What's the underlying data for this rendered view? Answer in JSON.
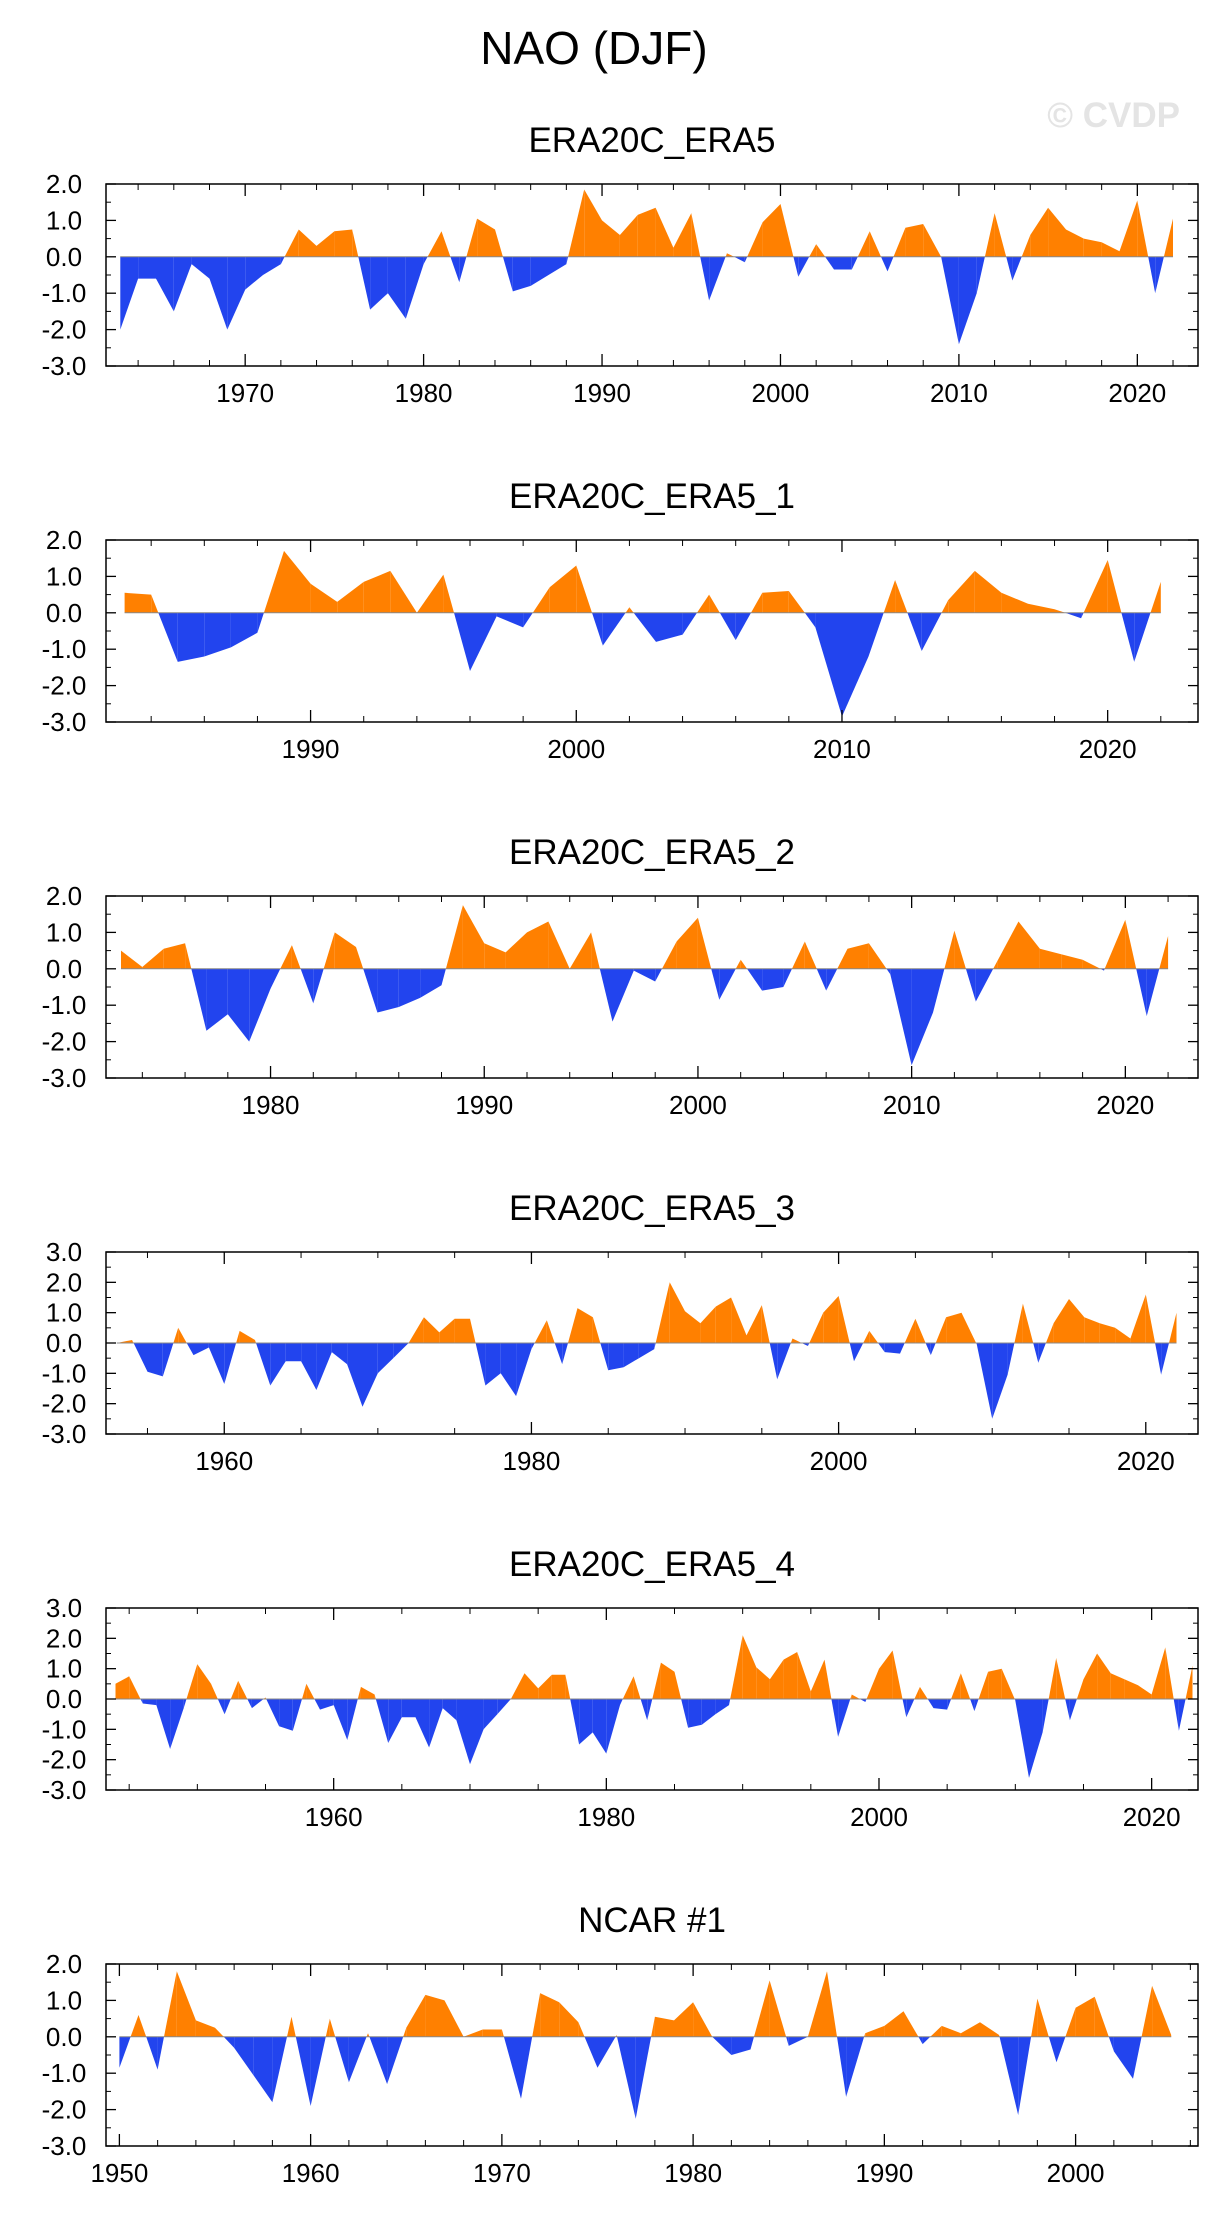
{
  "figure": {
    "title": "NAO (DJF)",
    "watermark": "© CVDP"
  },
  "colors": {
    "positive": "#ff8000",
    "negative": "#2244ee",
    "frame": "#000000",
    "zero_line": "#888888"
  },
  "chart_data": [
    {
      "type": "area",
      "title": "ERA20C_ERA5",
      "xlim": [
        1962.2,
        2023.4
      ],
      "ylim": [
        -3.0,
        2.0
      ],
      "yticks": [
        "2.0",
        "1.0",
        "0.0",
        "-1.0",
        "-2.0",
        "-3.0"
      ],
      "xticks": [
        1970,
        1980,
        1990,
        2000,
        2010,
        2020
      ],
      "x_start": 1963,
      "values": [
        -2.0,
        -0.6,
        -0.6,
        -1.5,
        -0.2,
        -0.6,
        -2.0,
        -0.9,
        -0.5,
        -0.2,
        0.75,
        0.3,
        0.7,
        0.75,
        -1.45,
        -1.0,
        -1.7,
        -0.2,
        0.7,
        -0.7,
        1.05,
        0.75,
        -0.95,
        -0.8,
        -0.5,
        -0.2,
        1.85,
        1.0,
        0.6,
        1.15,
        1.35,
        0.25,
        1.2,
        -1.2,
        0.1,
        -0.15,
        0.95,
        1.45,
        -0.55,
        0.35,
        -0.35,
        -0.35,
        0.7,
        -0.4,
        0.8,
        0.9,
        0.0,
        -2.4,
        -1.0,
        1.2,
        -0.65,
        0.6,
        1.35,
        0.75,
        0.5,
        0.4,
        0.15,
        1.55,
        -1.0,
        1.05
      ]
    },
    {
      "type": "area",
      "title": "ERA20C_ERA5_1",
      "xlim": [
        1982.3,
        2023.4
      ],
      "ylim": [
        -3.0,
        2.0
      ],
      "yticks": [
        "2.0",
        "1.0",
        "0.0",
        "-1.0",
        "-2.0",
        "-3.0"
      ],
      "xticks": [
        1990,
        2000,
        2010,
        2020
      ],
      "x_start": 1983,
      "values": [
        0.55,
        0.5,
        -1.35,
        -1.2,
        -0.95,
        -0.55,
        1.7,
        0.8,
        0.3,
        0.85,
        1.15,
        0.0,
        1.05,
        -1.6,
        -0.1,
        -0.4,
        0.7,
        1.3,
        -0.9,
        0.15,
        -0.8,
        -0.6,
        0.5,
        -0.75,
        0.55,
        0.6,
        -0.4,
        -2.85,
        -1.2,
        0.9,
        -1.05,
        0.35,
        1.15,
        0.55,
        0.25,
        0.1,
        -0.15,
        1.45,
        -1.35,
        0.85
      ]
    },
    {
      "type": "area",
      "title": "ERA20C_ERA5_2",
      "xlim": [
        1972.3,
        2023.4
      ],
      "ylim": [
        -3.0,
        2.0
      ],
      "yticks": [
        "2.0",
        "1.0",
        "0.0",
        "-1.0",
        "-2.0",
        "-3.0"
      ],
      "xticks": [
        1980,
        1990,
        2000,
        2010,
        2020
      ],
      "x_start": 1973,
      "values": [
        0.5,
        0.05,
        0.55,
        0.7,
        -1.7,
        -1.25,
        -2.0,
        -0.55,
        0.65,
        -0.95,
        1.0,
        0.6,
        -1.2,
        -1.05,
        -0.8,
        -0.45,
        1.75,
        0.7,
        0.45,
        1.0,
        1.3,
        0.0,
        1.0,
        -1.45,
        -0.05,
        -0.35,
        0.75,
        1.4,
        -0.85,
        0.25,
        -0.6,
        -0.5,
        0.75,
        -0.6,
        0.55,
        0.7,
        -0.15,
        -2.65,
        -1.2,
        1.05,
        -0.9,
        0.2,
        1.3,
        0.55,
        0.4,
        0.25,
        -0.05,
        1.35,
        -1.3,
        0.9
      ]
    },
    {
      "type": "area",
      "title": "ERA20C_ERA5_3",
      "xlim": [
        1952.3,
        2023.4
      ],
      "ylim": [
        -3.0,
        3.0
      ],
      "yticks": [
        "3.0",
        "2.0",
        "1.0",
        "0.0",
        "-1.0",
        "-2.0",
        "-3.0"
      ],
      "xticks": [
        1960,
        1980,
        2000,
        2020
      ],
      "x_start": 1953,
      "values": [
        0.0,
        0.1,
        -0.95,
        -1.1,
        0.5,
        -0.4,
        -0.15,
        -1.35,
        0.4,
        0.1,
        -1.4,
        -0.6,
        -0.6,
        -1.55,
        -0.3,
        -0.7,
        -2.1,
        -1.0,
        -0.5,
        0.0,
        0.85,
        0.35,
        0.8,
        0.8,
        -1.4,
        -1.0,
        -1.75,
        -0.2,
        0.75,
        -0.7,
        1.15,
        0.85,
        -0.9,
        -0.8,
        -0.5,
        -0.2,
        2.0,
        1.05,
        0.65,
        1.2,
        1.5,
        0.25,
        1.25,
        -1.2,
        0.15,
        -0.1,
        1.0,
        1.55,
        -0.6,
        0.4,
        -0.3,
        -0.35,
        0.8,
        -0.4,
        0.85,
        1.0,
        -0.05,
        -2.5,
        -1.05,
        1.3,
        -0.65,
        0.65,
        1.45,
        0.85,
        0.65,
        0.5,
        0.15,
        1.6,
        -1.05,
        1.0
      ]
    },
    {
      "type": "area",
      "title": "ERA20C_ERA5_4",
      "xlim": [
        1943.3,
        2023.4
      ],
      "ylim": [
        -3.0,
        3.0
      ],
      "yticks": [
        "3.0",
        "2.0",
        "1.0",
        "0.0",
        "-1.0",
        "-2.0",
        "-3.0"
      ],
      "xticks": [
        1960,
        1980,
        2000,
        2020
      ],
      "x_start": 1944,
      "values": [
        0.5,
        0.75,
        -0.15,
        -0.2,
        -1.65,
        -0.3,
        1.15,
        0.5,
        -0.5,
        0.6,
        -0.3,
        0.05,
        -0.9,
        -1.05,
        0.5,
        -0.35,
        -0.2,
        -1.35,
        0.4,
        0.15,
        -1.45,
        -0.6,
        -0.6,
        -1.6,
        -0.3,
        -0.7,
        -2.15,
        -1.0,
        -0.5,
        0.0,
        0.85,
        0.35,
        0.8,
        0.8,
        -1.5,
        -1.1,
        -1.8,
        -0.2,
        0.75,
        -0.7,
        1.2,
        0.9,
        -0.95,
        -0.85,
        -0.5,
        -0.2,
        2.1,
        1.05,
        0.65,
        1.3,
        1.55,
        0.25,
        1.3,
        -1.25,
        0.15,
        -0.1,
        1.0,
        1.6,
        -0.6,
        0.4,
        -0.3,
        -0.35,
        0.85,
        -0.4,
        0.9,
        1.0,
        -0.05,
        -2.6,
        -1.1,
        1.35,
        -0.7,
        0.65,
        1.5,
        0.85,
        0.65,
        0.45,
        0.15,
        1.7,
        -1.05,
        1.1
      ]
    },
    {
      "type": "area",
      "title": "NCAR #1",
      "xlim": [
        1949.3,
        2006.4
      ],
      "ylim": [
        -3.0,
        2.0
      ],
      "yticks": [
        "2.0",
        "1.0",
        "0.0",
        "-1.0",
        "-2.0",
        "-3.0"
      ],
      "xticks": [
        1950,
        1960,
        1970,
        1980,
        1990,
        2000
      ],
      "x_start": 1950,
      "values": [
        -0.85,
        0.6,
        -0.9,
        1.8,
        0.45,
        0.25,
        -0.3,
        -1.05,
        -1.8,
        0.55,
        -1.9,
        0.5,
        -1.25,
        0.1,
        -1.3,
        0.25,
        1.15,
        1.0,
        0.0,
        0.2,
        0.2,
        -1.7,
        1.2,
        0.95,
        0.4,
        -0.85,
        0.05,
        -2.25,
        0.55,
        0.45,
        0.95,
        0.0,
        -0.5,
        -0.35,
        1.55,
        -0.25,
        0.0,
        1.8,
        -1.65,
        0.1,
        0.3,
        0.7,
        -0.2,
        0.3,
        0.1,
        0.4,
        0.05,
        -2.15,
        1.05,
        -0.7,
        0.8,
        1.1,
        -0.4,
        -1.15,
        1.4,
        0.05
      ]
    }
  ]
}
